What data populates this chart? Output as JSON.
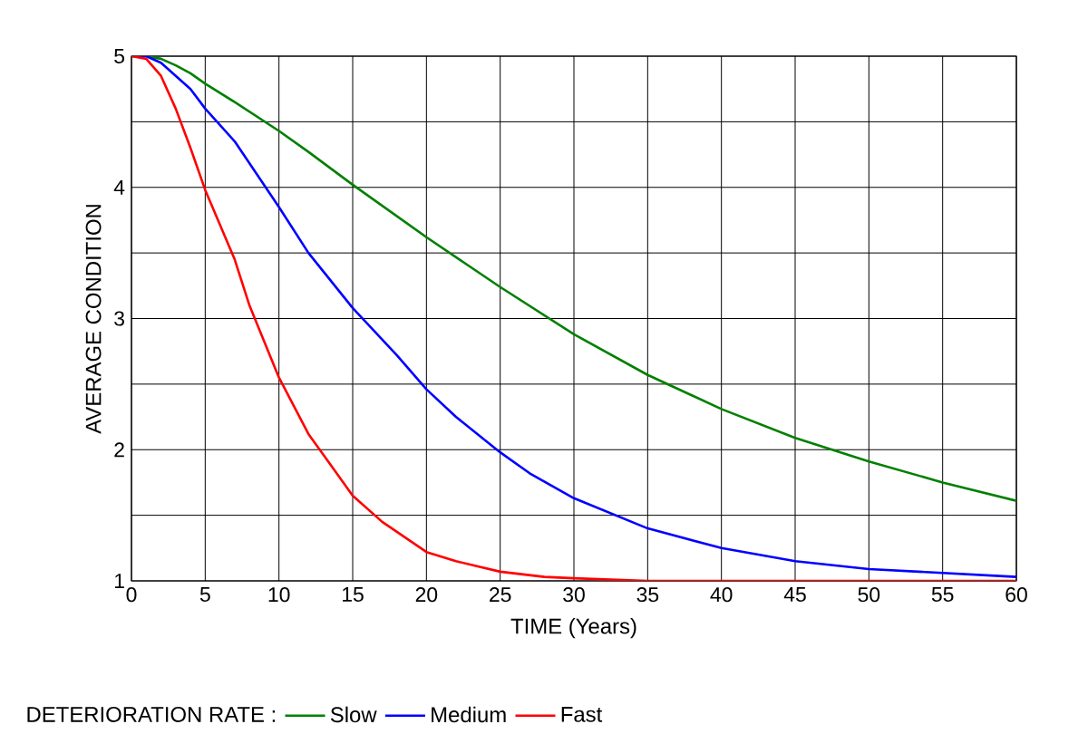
{
  "chart_data": {
    "type": "line",
    "xlabel": "TIME (Years)",
    "ylabel": "AVERAGE CONDITION",
    "legend_title": "DETERIORATION RATE :",
    "legend": "bottom",
    "grid": true,
    "xlim": [
      0,
      60
    ],
    "ylim": [
      1,
      5
    ],
    "xticks": [
      0,
      5,
      10,
      15,
      20,
      25,
      30,
      35,
      40,
      45,
      50,
      55,
      60
    ],
    "yticks": [
      1,
      {
        "value": 1.5,
        "label": null
      },
      2,
      {
        "value": 2.5,
        "label": null
      },
      3,
      {
        "value": 3.5,
        "label": null
      },
      4,
      {
        "value": 4.5,
        "label": null
      },
      5
    ],
    "series": [
      {
        "name": "Slow",
        "color": "#008000",
        "x": [
          0,
          1,
          2,
          3,
          4,
          5,
          7,
          10,
          12,
          15,
          20,
          25,
          30,
          35,
          40,
          45,
          50,
          55,
          60
        ],
        "values": [
          5,
          5,
          4.98,
          4.93,
          4.87,
          4.79,
          4.65,
          4.43,
          4.27,
          4.02,
          3.62,
          3.24,
          2.88,
          2.57,
          2.31,
          2.09,
          1.91,
          1.75,
          1.61
        ]
      },
      {
        "name": "Medium",
        "color": "#0000ff",
        "x": [
          0,
          1,
          2,
          3,
          4,
          5,
          7,
          10,
          12,
          15,
          18,
          20,
          22,
          25,
          27,
          30,
          35,
          40,
          45,
          50,
          55,
          60
        ],
        "values": [
          5,
          5,
          4.95,
          4.85,
          4.75,
          4.6,
          4.35,
          3.85,
          3.5,
          3.08,
          2.72,
          2.46,
          2.25,
          1.98,
          1.82,
          1.63,
          1.4,
          1.25,
          1.15,
          1.09,
          1.06,
          1.03
        ]
      },
      {
        "name": "Fast",
        "color": "#ff0000",
        "x": [
          0,
          1,
          2,
          3,
          4,
          5,
          7,
          8,
          10,
          12,
          15,
          17,
          20,
          22,
          25,
          28,
          30,
          35,
          40,
          50,
          60
        ],
        "values": [
          5,
          4.98,
          4.85,
          4.6,
          4.3,
          3.98,
          3.45,
          3.1,
          2.55,
          2.12,
          1.65,
          1.45,
          1.22,
          1.15,
          1.07,
          1.03,
          1.02,
          1.0,
          1,
          1,
          1
        ]
      }
    ]
  }
}
